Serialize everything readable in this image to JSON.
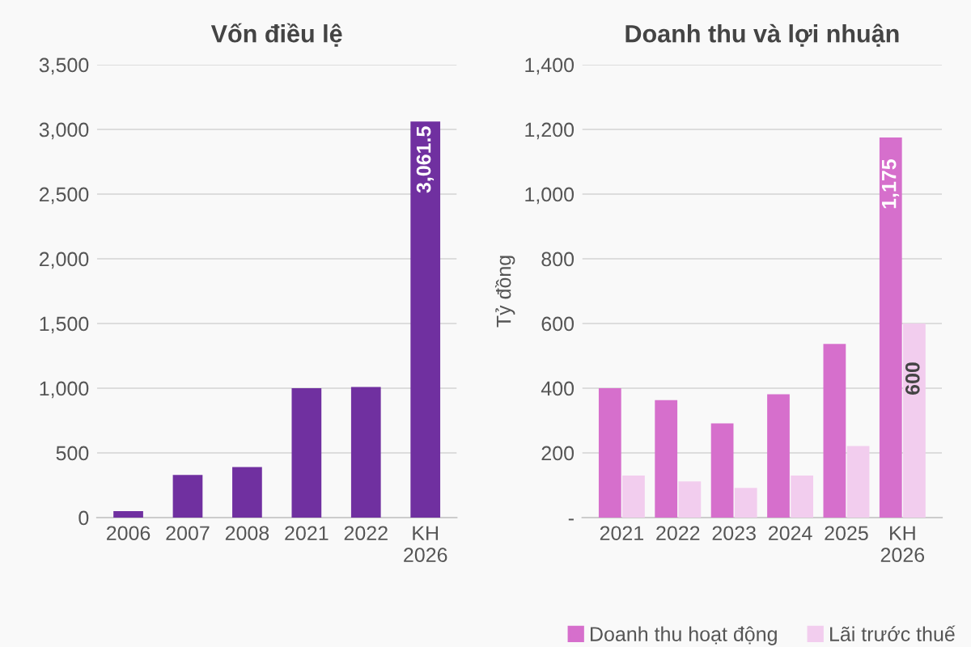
{
  "chart_data": [
    {
      "type": "bar",
      "title": "Vốn điều lệ",
      "categories": [
        "2006",
        "2007",
        "2008",
        "2021",
        "2022",
        "KH\n2026"
      ],
      "series": [
        {
          "color": "#7030a0",
          "values": [
            50,
            330,
            390,
            1000,
            1010,
            3061.5
          ],
          "value_labels": [
            null,
            null,
            null,
            null,
            null,
            "3,061.5"
          ]
        }
      ],
      "ylim": [
        0,
        3500
      ],
      "yticks": [
        {
          "value": 0,
          "label": "0"
        },
        {
          "value": 500,
          "label": "500"
        },
        {
          "value": 1000,
          "label": "1,000"
        },
        {
          "value": 1500,
          "label": "1,500"
        },
        {
          "value": 2000,
          "label": "2,000"
        },
        {
          "value": 2500,
          "label": "2,500"
        },
        {
          "value": 3000,
          "label": "3,000"
        },
        {
          "value": 3500,
          "label": "3,500"
        }
      ],
      "grid": "y",
      "legend": false
    },
    {
      "type": "bar",
      "title": "Doanh thu và lợi nhuận",
      "ylabel": "Tỷ đồng",
      "categories": [
        "2021",
        "2022",
        "2023",
        "2024",
        "2025",
        "KH\n2026"
      ],
      "series": [
        {
          "name": "Doanh thu hoạt động",
          "color": "#d66fcc",
          "values": [
            400,
            363,
            291,
            381,
            537,
            1175
          ],
          "value_labels": [
            null,
            null,
            null,
            null,
            null,
            "1,175"
          ]
        },
        {
          "name": "Lãi trước thuế",
          "color": "#f2cdee",
          "values": [
            130,
            112,
            92,
            130,
            221,
            600
          ],
          "value_labels": [
            null,
            null,
            null,
            null,
            null,
            "600"
          ]
        }
      ],
      "ylim": [
        0,
        1400
      ],
      "yticks": [
        {
          "value": 0,
          "label": "-"
        },
        {
          "value": 200,
          "label": "200"
        },
        {
          "value": 400,
          "label": "400"
        },
        {
          "value": 600,
          "label": "600"
        },
        {
          "value": 800,
          "label": "800"
        },
        {
          "value": 1000,
          "label": "1,000"
        },
        {
          "value": 1200,
          "label": "1,200"
        },
        {
          "value": 1400,
          "label": "1,400"
        }
      ],
      "grid": "y",
      "legend": "bottom"
    }
  ]
}
